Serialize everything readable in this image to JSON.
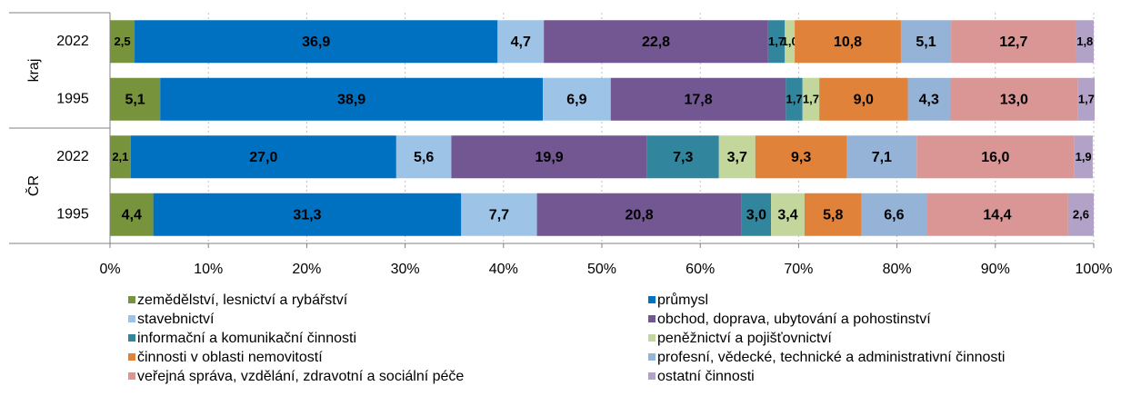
{
  "chart_data": {
    "type": "stacked-bar-horizontal",
    "categories": [
      "2022",
      "1995",
      "2022",
      "1995"
    ],
    "category_groups": [
      "kraj",
      "kraj",
      "ČR",
      "ČR"
    ],
    "xlim": [
      0,
      100
    ],
    "xticks": [
      {
        "value": 0,
        "label": "0%"
      },
      {
        "value": 10,
        "label": "10%"
      },
      {
        "value": 20,
        "label": "20%"
      },
      {
        "value": 30,
        "label": "30%"
      },
      {
        "value": 40,
        "label": "40%"
      },
      {
        "value": 50,
        "label": "50%"
      },
      {
        "value": 60,
        "label": "60%"
      },
      {
        "value": 70,
        "label": "70%"
      },
      {
        "value": 80,
        "label": "80%"
      },
      {
        "value": 90,
        "label": "90%"
      },
      {
        "value": 100,
        "label": "100%"
      }
    ],
    "grid": true,
    "legend": "bottom",
    "series": [
      {
        "name": "zemědělství, lesnictví a rybářství",
        "color": "#77933c",
        "label_color": "#000000",
        "values": [
          2.5,
          5.1,
          2.1,
          4.4
        ],
        "value_labels": [
          "2,5",
          "5,1",
          "2,1",
          "4,4"
        ]
      },
      {
        "name": "průmysl",
        "color": "#0070c0",
        "label_color": "#ffffff",
        "values": [
          36.9,
          38.9,
          27.0,
          31.3
        ],
        "value_labels": [
          "36,9",
          "38,9",
          "27,0",
          "31,3"
        ]
      },
      {
        "name": "stavebnictví",
        "color": "#9dc3e6",
        "label_color": "#000000",
        "values": [
          4.7,
          6.9,
          5.6,
          7.7
        ],
        "value_labels": [
          "4,7",
          "6,9",
          "5,6",
          "7,7"
        ]
      },
      {
        "name": "obchod, doprava, ubytování a pohostinství",
        "color": "#725792",
        "label_color": "#ffffff",
        "values": [
          22.8,
          17.8,
          19.9,
          20.8
        ],
        "value_labels": [
          "22,8",
          "17,8",
          "19,9",
          "20,8"
        ]
      },
      {
        "name": "informační a komunikační činnosti",
        "color": "#31859c",
        "label_color": "#ffffff",
        "values": [
          1.7,
          1.7,
          7.3,
          3.0
        ],
        "value_labels": [
          "1,7",
          "1,7",
          "7,3",
          "3,0"
        ]
      },
      {
        "name": "peněžnictví a pojišťovnictví",
        "color": "#c3d69b",
        "label_color": "#000000",
        "values": [
          1.0,
          1.7,
          3.7,
          3.4
        ],
        "value_labels": [
          "1,0",
          "1,7",
          "3,7",
          "3,4"
        ]
      },
      {
        "name": "činnosti v oblasti nemovitostí",
        "color": "#e0823a",
        "label_color": "#000000",
        "values": [
          10.8,
          9.0,
          9.3,
          5.8
        ],
        "value_labels": [
          "10,8",
          "9,0",
          "9,3",
          "5,8"
        ]
      },
      {
        "name": "profesní, vědecké, technické a administrativní činnosti",
        "color": "#95b3d7",
        "label_color": "#000000",
        "values": [
          5.1,
          4.3,
          7.1,
          6.6
        ],
        "value_labels": [
          "5,1",
          "4,3",
          "7,1",
          "6,6"
        ]
      },
      {
        "name": "veřejná správa, vzdělání, zdravotní a sociální péče",
        "color": "#d99694",
        "label_color": "#000000",
        "values": [
          12.7,
          13.0,
          16.0,
          14.4
        ],
        "value_labels": [
          "12,7",
          "13,0",
          "16,0",
          "14,4"
        ]
      },
      {
        "name": "ostatní činnosti",
        "color": "#b3a2c7",
        "label_color": "#000000",
        "values": [
          1.8,
          1.7,
          1.9,
          2.6
        ],
        "value_labels": [
          "1,8",
          "1,7",
          "1,9",
          "2,6"
        ]
      }
    ]
  }
}
